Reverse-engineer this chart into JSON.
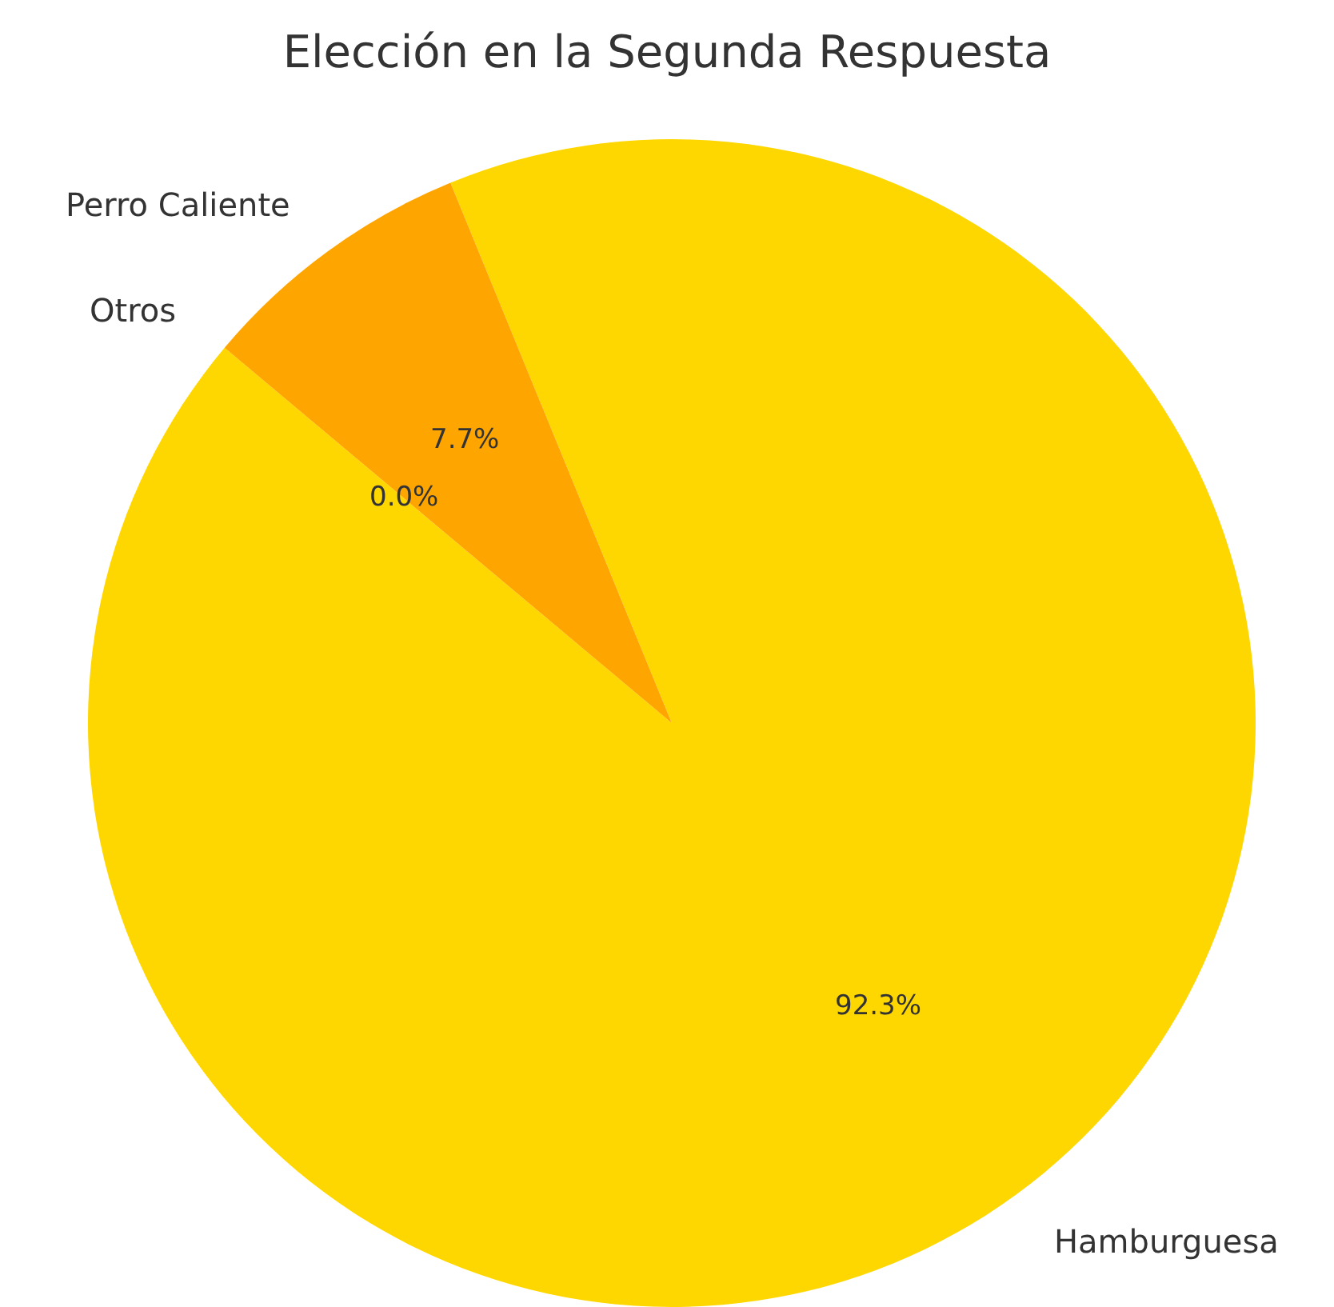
{
  "chart_data": {
    "type": "pie",
    "title": "Elección en la Segunda Respuesta",
    "categories": [
      "Hamburguesa",
      "Perro Caliente",
      "Otros"
    ],
    "values": [
      92.3,
      7.7,
      0.0
    ],
    "colors": [
      "#ffd700",
      "#ffa500",
      "#ff8c00"
    ],
    "value_labels": [
      "92.3%",
      "7.7%",
      "0.0%"
    ],
    "legend": false
  }
}
